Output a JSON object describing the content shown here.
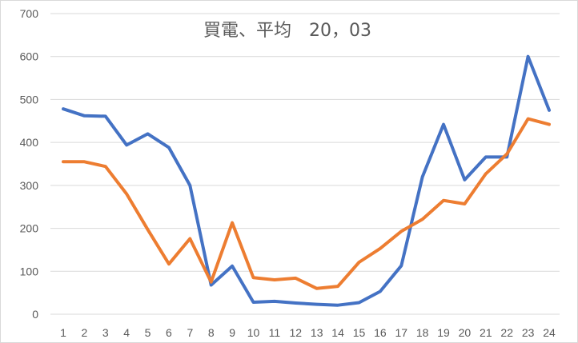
{
  "chart_data": {
    "type": "line",
    "title": "買電、平均　20，03",
    "xlabel": "",
    "ylabel": "",
    "x": [
      "1",
      "2",
      "3",
      "4",
      "5",
      "6",
      "7",
      "8",
      "9",
      "10",
      "11",
      "12",
      "13",
      "14",
      "15",
      "16",
      "17",
      "18",
      "19",
      "20",
      "21",
      "22",
      "23",
      "24"
    ],
    "ylim": [
      0,
      700
    ],
    "yticks": [
      "0",
      "100",
      "200",
      "300",
      "400",
      "500",
      "600",
      "700"
    ],
    "grid": true,
    "legend": "none",
    "series": [
      {
        "color": "#4472c4",
        "values": [
          478,
          462,
          461,
          394,
          420,
          388,
          300,
          68,
          112,
          28,
          30,
          26,
          23,
          21,
          27,
          53,
          113,
          320,
          442,
          313,
          366,
          366,
          600,
          475
        ]
      },
      {
        "color": "#ed7d31",
        "values": [
          355,
          355,
          344,
          280,
          197,
          117,
          176,
          75,
          213,
          85,
          80,
          84,
          60,
          65,
          121,
          153,
          193,
          221,
          265,
          257,
          327,
          373,
          455,
          442
        ]
      }
    ]
  }
}
